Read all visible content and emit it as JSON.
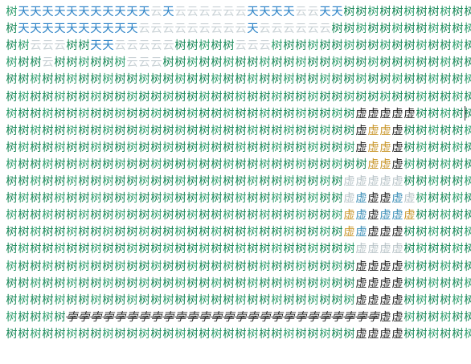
{
  "legend_glyphs": {
    "tree": "树",
    "sky": "天",
    "cloud": "云",
    "void": "虚",
    "seed": "孛"
  },
  "palette": {
    "tree": "#1a8a5a",
    "tree_alt": "#2d9d6c",
    "sky": "#2b82c6",
    "cloud": "#c9d2d6",
    "void": "#222222",
    "void_gold": "#c9962a",
    "void_blue": "#3c8fb8",
    "void_grey": "#b8c4c8",
    "background": "#ffffff"
  },
  "map_rows": [
    [
      "t",
      "s",
      "s",
      "s",
      "s",
      "s",
      "s",
      "s",
      "s",
      "s",
      "s",
      "s",
      "c",
      "s",
      "c",
      "c",
      "c",
      "c",
      "c",
      "c",
      "s",
      "s",
      "s",
      "s",
      "c",
      "c",
      "s",
      "s",
      "t",
      "t",
      "t",
      "t",
      "t",
      "t",
      "t",
      "t",
      "t",
      "t",
      "t"
    ],
    [
      "t",
      "s",
      "s",
      "s",
      "s",
      "s",
      "s",
      "s",
      "s",
      "s",
      "s",
      "c",
      "c",
      "c",
      "c",
      "c",
      "c",
      "c",
      "c",
      "c",
      "s",
      "c",
      "c",
      "c",
      "c",
      "c",
      "c",
      "t",
      "t",
      "t",
      "t",
      "t",
      "t",
      "t",
      "t",
      "t",
      "t",
      "t",
      "t"
    ],
    [
      "t",
      "t",
      "c",
      "c",
      "c",
      "t",
      "t",
      "s",
      "s",
      "c",
      "c",
      "c",
      "c",
      "c",
      "t",
      "t",
      "t",
      "t",
      "t",
      "c",
      "c",
      "c",
      "t",
      "t",
      "t",
      "t",
      "t",
      "t",
      "t",
      "t",
      "t",
      "t",
      "t",
      "t",
      "t",
      "t",
      "t",
      "t",
      "t"
    ],
    [
      "t",
      "t",
      "t",
      "c",
      "t",
      "t",
      "t",
      "t",
      "t",
      "t",
      "c",
      "c",
      "c",
      "t",
      "t",
      "t",
      "t",
      "t",
      "t",
      "t",
      "t",
      "t",
      "t",
      "t",
      "t",
      "t",
      "t",
      "t",
      "t",
      "t",
      "t",
      "t",
      "t",
      "t",
      "t",
      "t",
      "t",
      "t",
      "t"
    ],
    [
      "t",
      "t",
      "t",
      "t",
      "t",
      "t",
      "t",
      "t",
      "t",
      "t",
      "t",
      "t",
      "t",
      "t",
      "t",
      "t",
      "t",
      "t",
      "t",
      "t",
      "t",
      "t",
      "t",
      "t",
      "t",
      "t",
      "t",
      "t",
      "t",
      "t",
      "t",
      "t",
      "t",
      "t",
      "t",
      "t",
      "t",
      "t",
      "t"
    ],
    [
      "t",
      "t",
      "t",
      "t",
      "t",
      "t",
      "t",
      "t",
      "t",
      "t",
      "t",
      "t",
      "t",
      "t",
      "t",
      "t",
      "t",
      "t",
      "t",
      "t",
      "t",
      "t",
      "t",
      "t",
      "t",
      "t",
      "t",
      "t",
      "t",
      "t",
      "t",
      "t",
      "t",
      "t",
      "t",
      "t",
      "t",
      "t",
      "t"
    ],
    [
      "t",
      "t",
      "t",
      "t",
      "t",
      "t",
      "t",
      "t",
      "t",
      "t",
      "t",
      "t",
      "t",
      "t",
      "t",
      "t",
      "t",
      "t",
      "t",
      "t",
      "t",
      "t",
      "t",
      "t",
      "t",
      "t",
      "t",
      "t",
      "t",
      "v",
      "v",
      "v",
      "v",
      "v",
      "t",
      "t",
      "t",
      "t",
      "t"
    ],
    [
      "t",
      "t",
      "t",
      "t",
      "t",
      "t",
      "t",
      "t",
      "t",
      "t",
      "t",
      "t",
      "t",
      "t",
      "t",
      "t",
      "t",
      "t",
      "t",
      "t",
      "t",
      "t",
      "t",
      "t",
      "t",
      "t",
      "t",
      "t",
      "t",
      "v",
      "g",
      "g",
      "v",
      "t",
      "t",
      "t",
      "t",
      "t",
      "t"
    ],
    [
      "t",
      "t",
      "t",
      "t",
      "t",
      "t",
      "t",
      "t",
      "t",
      "t",
      "t",
      "t",
      "t",
      "t",
      "t",
      "t",
      "t",
      "t",
      "t",
      "t",
      "t",
      "t",
      "t",
      "t",
      "t",
      "t",
      "t",
      "t",
      "t",
      "v",
      "g",
      "g",
      "v",
      "t",
      "t",
      "t",
      "t",
      "t",
      "t"
    ],
    [
      "t",
      "t",
      "t",
      "t",
      "t",
      "t",
      "t",
      "t",
      "t",
      "t",
      "t",
      "t",
      "t",
      "t",
      "t",
      "t",
      "t",
      "t",
      "t",
      "t",
      "t",
      "t",
      "t",
      "t",
      "t",
      "t",
      "t",
      "t",
      "t",
      "t",
      "g",
      "g",
      "v",
      "t",
      "t",
      "t",
      "t",
      "t",
      "t"
    ],
    [
      "t",
      "t",
      "t",
      "t",
      "t",
      "t",
      "t",
      "t",
      "t",
      "t",
      "t",
      "t",
      "t",
      "t",
      "t",
      "t",
      "t",
      "t",
      "t",
      "t",
      "t",
      "t",
      "t",
      "t",
      "t",
      "t",
      "t",
      "t",
      "x",
      "x",
      "x",
      "x",
      "x",
      "t",
      "t",
      "t",
      "t",
      "t",
      "t"
    ],
    [
      "t",
      "t",
      "t",
      "t",
      "t",
      "t",
      "t",
      "t",
      "t",
      "t",
      "t",
      "t",
      "t",
      "t",
      "t",
      "t",
      "t",
      "t",
      "t",
      "t",
      "t",
      "t",
      "t",
      "t",
      "t",
      "t",
      "t",
      "t",
      "x",
      "b",
      "v",
      "v",
      "b",
      "x",
      "t",
      "t",
      "t",
      "t",
      "t"
    ],
    [
      "t",
      "t",
      "t",
      "t",
      "t",
      "t",
      "t",
      "t",
      "t",
      "t",
      "t",
      "t",
      "t",
      "t",
      "t",
      "t",
      "t",
      "t",
      "t",
      "t",
      "t",
      "t",
      "t",
      "t",
      "t",
      "t",
      "t",
      "t",
      "g",
      "b",
      "v",
      "b",
      "b",
      "g",
      "t",
      "t",
      "t",
      "t",
      "t"
    ],
    [
      "t",
      "t",
      "t",
      "t",
      "t",
      "t",
      "t",
      "t",
      "t",
      "t",
      "t",
      "t",
      "t",
      "t",
      "t",
      "t",
      "t",
      "t",
      "t",
      "t",
      "t",
      "t",
      "t",
      "t",
      "t",
      "t",
      "t",
      "t",
      "g",
      "b",
      "v",
      "v",
      "v",
      "t",
      "t",
      "t",
      "t",
      "t",
      "t"
    ],
    [
      "t",
      "t",
      "t",
      "t",
      "t",
      "t",
      "t",
      "t",
      "t",
      "t",
      "t",
      "t",
      "t",
      "t",
      "t",
      "t",
      "t",
      "t",
      "t",
      "t",
      "t",
      "t",
      "t",
      "t",
      "t",
      "t",
      "t",
      "t",
      "t",
      "x",
      "x",
      "x",
      "x",
      "t",
      "t",
      "t",
      "t",
      "t",
      "t"
    ],
    [
      "t",
      "t",
      "t",
      "t",
      "t",
      "t",
      "t",
      "t",
      "t",
      "t",
      "t",
      "t",
      "t",
      "t",
      "t",
      "t",
      "t",
      "t",
      "t",
      "t",
      "t",
      "t",
      "t",
      "t",
      "t",
      "t",
      "t",
      "t",
      "t",
      "v",
      "v",
      "v",
      "v",
      "t",
      "t",
      "t",
      "t",
      "t",
      "t"
    ],
    [
      "t",
      "t",
      "t",
      "t",
      "t",
      "t",
      "t",
      "t",
      "t",
      "t",
      "t",
      "t",
      "t",
      "t",
      "t",
      "t",
      "t",
      "t",
      "t",
      "t",
      "t",
      "t",
      "t",
      "t",
      "t",
      "t",
      "t",
      "t",
      "t",
      "v",
      "v",
      "v",
      "v",
      "t",
      "t",
      "t",
      "t",
      "t",
      "t"
    ],
    [
      "t",
      "t",
      "t",
      "t",
      "t",
      "t",
      "t",
      "t",
      "t",
      "t",
      "t",
      "t",
      "t",
      "t",
      "t",
      "t",
      "t",
      "t",
      "t",
      "t",
      "t",
      "t",
      "t",
      "t",
      "t",
      "t",
      "t",
      "t",
      "t",
      "v",
      "v",
      "v",
      "v",
      "t",
      "t",
      "t",
      "t",
      "t",
      "t"
    ],
    [
      "t",
      "t",
      "t",
      "t",
      "t",
      "p",
      "p",
      "p",
      "p",
      "p",
      "p",
      "p",
      "p",
      "p",
      "p",
      "p",
      "p",
      "p",
      "p",
      "p",
      "p",
      "p",
      "p",
      "p",
      "p",
      "p",
      "p",
      "p",
      "p",
      "p",
      "p",
      "v",
      "v",
      "t",
      "t",
      "t",
      "t",
      "t",
      "t"
    ],
    [
      "t",
      "t",
      "t",
      "t",
      "t",
      "t",
      "t",
      "t",
      "t",
      "t",
      "t",
      "t",
      "t",
      "t",
      "t",
      "t",
      "t",
      "t",
      "t",
      "t",
      "t",
      "t",
      "t",
      "t",
      "t",
      "t",
      "t",
      "t",
      "t",
      "v",
      "v",
      "v",
      "v",
      "t",
      "t",
      "t",
      "t",
      "t",
      "t"
    ]
  ]
}
